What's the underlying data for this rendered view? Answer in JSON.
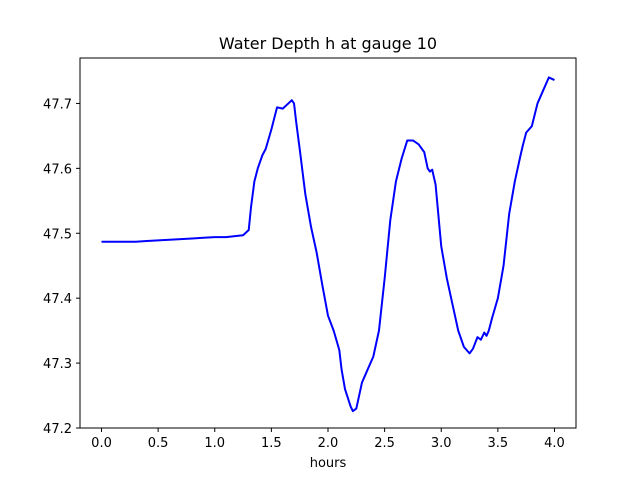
{
  "chart_data": {
    "type": "line",
    "title": "Water Depth h at gauge 10",
    "xlabel": "hours",
    "ylabel": "",
    "xlim": [
      -0.19,
      4.19
    ],
    "ylim": [
      47.2,
      47.77
    ],
    "x_ticks": [
      0.0,
      0.5,
      1.0,
      1.5,
      2.0,
      2.5,
      3.0,
      3.5,
      4.0
    ],
    "x_tick_labels": [
      "0.0",
      "0.5",
      "1.0",
      "1.5",
      "2.0",
      "2.5",
      "3.0",
      "3.5",
      "4.0"
    ],
    "y_ticks": [
      47.2,
      47.3,
      47.4,
      47.5,
      47.6,
      47.7
    ],
    "y_tick_labels": [
      "47.2",
      "47.3",
      "47.4",
      "47.5",
      "47.6",
      "47.7"
    ],
    "grid": false,
    "legend": "none",
    "series": [
      {
        "color": "#0000ff",
        "x": [
          0.0,
          0.1,
          0.2,
          0.3,
          0.4,
          0.5,
          0.6,
          0.7,
          0.8,
          0.9,
          1.0,
          1.1,
          1.15,
          1.2,
          1.25,
          1.3,
          1.32,
          1.35,
          1.38,
          1.42,
          1.45,
          1.5,
          1.55,
          1.6,
          1.65,
          1.68,
          1.7,
          1.72,
          1.75,
          1.8,
          1.85,
          1.9,
          1.95,
          2.0,
          2.05,
          2.1,
          2.12,
          2.15,
          2.2,
          2.22,
          2.25,
          2.3,
          2.35,
          2.4,
          2.45,
          2.5,
          2.55,
          2.6,
          2.65,
          2.7,
          2.75,
          2.8,
          2.85,
          2.88,
          2.9,
          2.92,
          2.95,
          3.0,
          3.05,
          3.1,
          3.15,
          3.2,
          3.25,
          3.28,
          3.32,
          3.35,
          3.38,
          3.4,
          3.42,
          3.45,
          3.5,
          3.55,
          3.6,
          3.65,
          3.7,
          3.72,
          3.75,
          3.8,
          3.85,
          3.9,
          3.95,
          4.0
        ],
        "y": [
          47.487,
          47.487,
          47.487,
          47.487,
          47.488,
          47.489,
          47.49,
          47.491,
          47.492,
          47.493,
          47.494,
          47.494,
          47.495,
          47.496,
          47.497,
          47.505,
          47.54,
          47.58,
          47.6,
          47.62,
          47.63,
          47.66,
          47.694,
          47.692,
          47.7,
          47.705,
          47.7,
          47.67,
          47.63,
          47.56,
          47.51,
          47.47,
          47.42,
          47.373,
          47.35,
          47.32,
          47.29,
          47.26,
          47.233,
          47.226,
          47.23,
          47.27,
          47.29,
          47.31,
          47.35,
          47.43,
          47.52,
          47.58,
          47.615,
          47.643,
          47.643,
          47.637,
          47.625,
          47.6,
          47.595,
          47.598,
          47.575,
          47.48,
          47.43,
          47.39,
          47.35,
          47.325,
          47.315,
          47.322,
          47.34,
          47.336,
          47.347,
          47.342,
          47.35,
          47.37,
          47.4,
          47.45,
          47.53,
          47.58,
          47.62,
          47.635,
          47.655,
          47.665,
          47.7,
          47.72,
          47.74,
          47.736
        ]
      }
    ]
  }
}
